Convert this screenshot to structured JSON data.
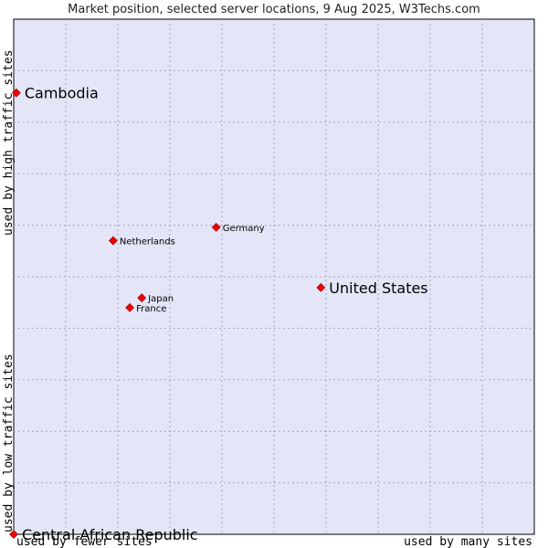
{
  "chart_data": {
    "type": "scatter",
    "title": "Market position, selected server locations, 9 Aug 2025, W3Techs.com",
    "xlabel_left": "used by fewer sites",
    "xlabel_right": "used by many sites",
    "ylabel_bottom": "used by low traffic sites",
    "ylabel_top": "used by high traffic sites",
    "xlim": [
      0,
      10
    ],
    "ylim": [
      0,
      10
    ],
    "grid": true,
    "colors": {
      "plot_bg": "#e4e6f8",
      "grid": "#a6a6bf",
      "point": "#ee0000",
      "point_edge": "#990000"
    },
    "points": [
      {
        "label": "Cambodia",
        "x": 0.05,
        "y": 8.57,
        "size": "large"
      },
      {
        "label": "Germany",
        "x": 3.89,
        "y": 5.96,
        "size": "small"
      },
      {
        "label": "Netherlands",
        "x": 1.91,
        "y": 5.7,
        "size": "small"
      },
      {
        "label": "United States",
        "x": 5.9,
        "y": 4.79,
        "size": "large"
      },
      {
        "label": "Japan",
        "x": 2.46,
        "y": 4.59,
        "size": "small"
      },
      {
        "label": "France",
        "x": 2.23,
        "y": 4.4,
        "size": "small"
      },
      {
        "label": "Central African Republic",
        "x": 0.0,
        "y": 0.0,
        "size": "large"
      }
    ]
  }
}
